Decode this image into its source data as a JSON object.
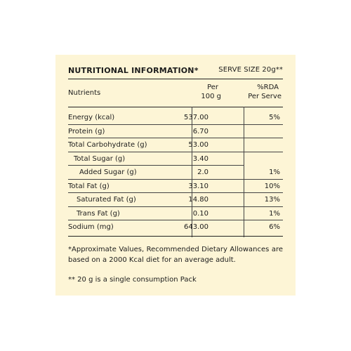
{
  "header": {
    "title": "NUTRITIONAL INFORMATION*",
    "serve_size": "SERVE SIZE 20g**"
  },
  "columns": {
    "nutrients": "Nutrients",
    "per_line1": "Per",
    "per_line2": "100 g",
    "rda_line1": "%RDA",
    "rda_line2": "Per Serve"
  },
  "rows": [
    {
      "name": "Energy (kcal)",
      "per100": "537.00",
      "rda": "5%"
    },
    {
      "name": "Protein (g)",
      "per100": "6.70",
      "rda": ""
    },
    {
      "name": "Total Carbohydrate (g)",
      "per100": "53.00",
      "rda": ""
    },
    {
      "name": "Total Sugar (g)",
      "per100": "3.40",
      "rda": ""
    },
    {
      "name": "Added Sugar (g)",
      "per100": "2.0",
      "rda": "1%"
    },
    {
      "name": "Total Fat (g)",
      "per100": "33.10",
      "rda": "10%"
    },
    {
      "name": "Saturated Fat (g)",
      "per100": "14.80",
      "rda": "13%"
    },
    {
      "name": "Trans Fat (g)",
      "per100": "0.10",
      "rda": "1%"
    },
    {
      "name": "Sodium (mg)",
      "per100": "643.00",
      "rda": "6%"
    }
  ],
  "footnotes": {
    "approx": "*Approximate Values, Recommended Dietary Allowances are based on a 2000 Kcal diet for an average adult.",
    "serve": "** 20 g is a single consumption Pack"
  }
}
